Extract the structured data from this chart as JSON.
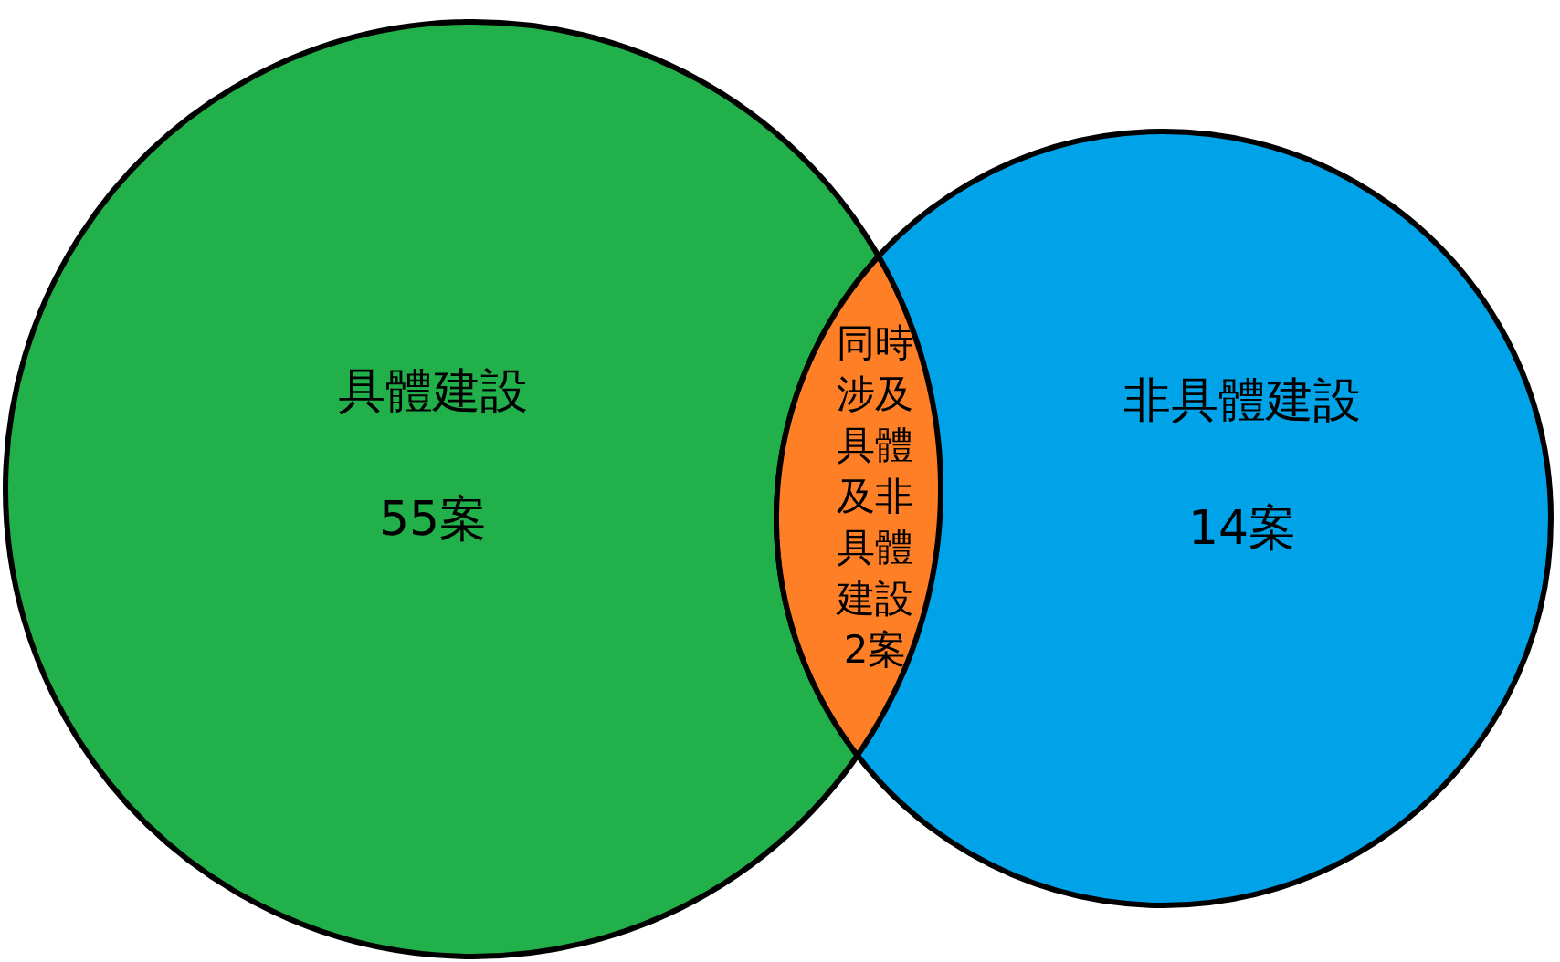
{
  "chart_data": {
    "type": "other",
    "categories": [
      "具體建設",
      "非具體建設",
      "同時涉及具體及非具體建設"
    ],
    "values": [
      55,
      14,
      2
    ],
    "value_labels": [
      "55案",
      "14案",
      "2案"
    ],
    "colors": [
      "#22b04b",
      "#00a2e8",
      "#ff7f27"
    ]
  }
}
